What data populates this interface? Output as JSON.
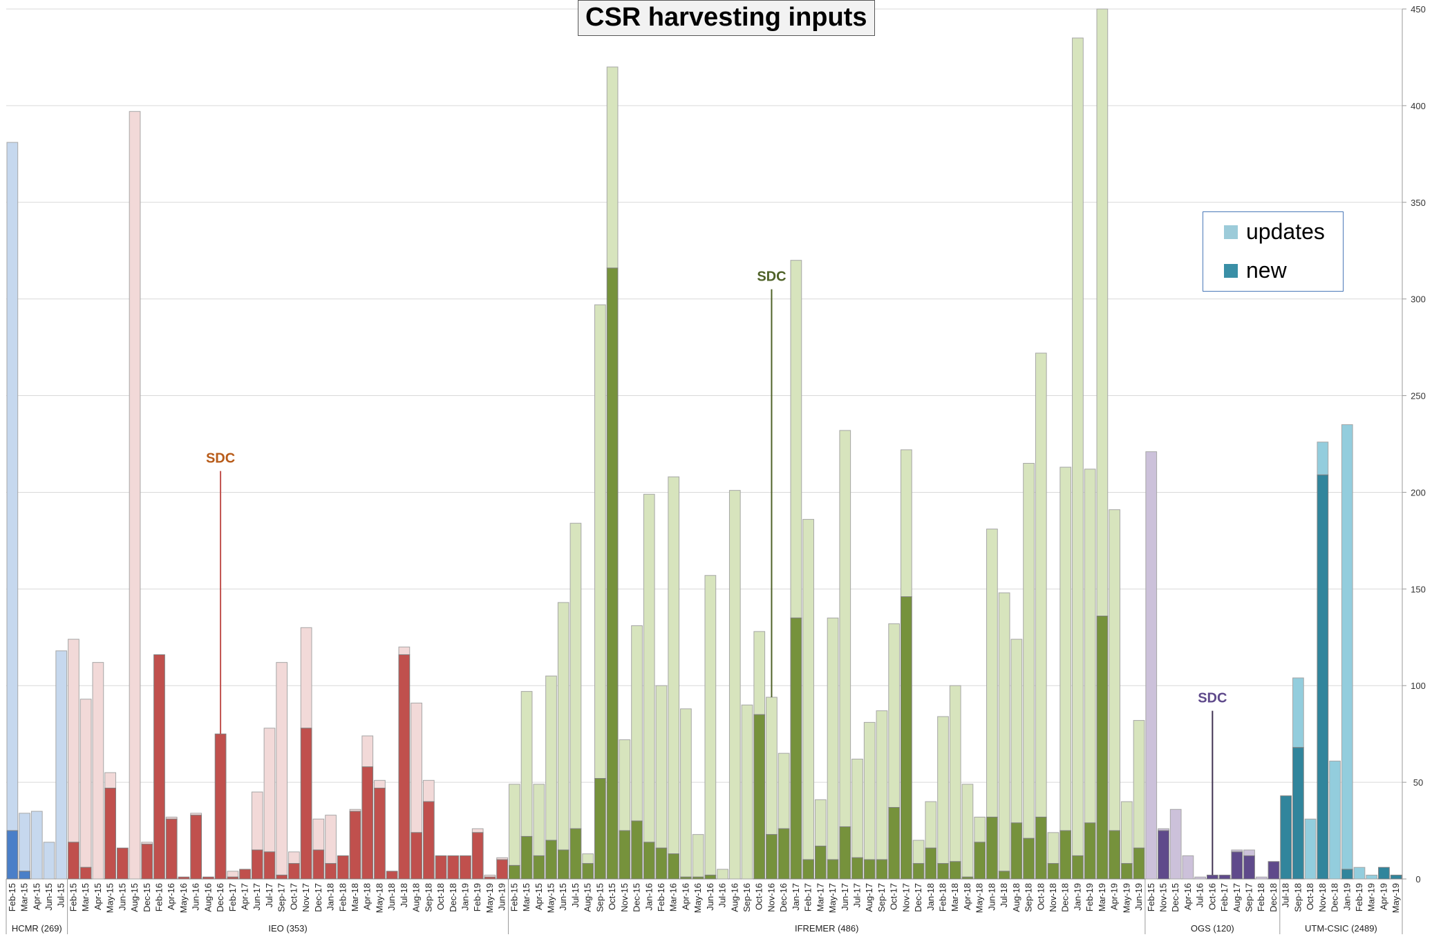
{
  "chart_data": {
    "type": "bar",
    "title": "CSR harvesting inputs",
    "ylim": [
      0,
      450
    ],
    "yticks": [
      0,
      50,
      100,
      150,
      200,
      250,
      300,
      350,
      400,
      450
    ],
    "grid": true,
    "stacked": true,
    "legend": {
      "position": "right",
      "entries": [
        "updates",
        "new"
      ]
    },
    "legend_colors": {
      "updates": "#9ccbd9",
      "new": "#3a8fa6"
    },
    "groups": [
      {
        "name": "HCMR (269)",
        "colors": {
          "new": "#4a7fc8",
          "updates": "#c6d8ee"
        },
        "categories": [
          "Feb-15",
          "Mar-15",
          "Apr-15",
          "Jun-15",
          "Jul-15"
        ],
        "new": [
          25,
          4,
          0,
          0,
          0
        ],
        "total": [
          381,
          34,
          35,
          19,
          118
        ]
      },
      {
        "name": "IEO (353)",
        "colors": {
          "new": "#c0504d",
          "updates": "#f2d9d8"
        },
        "categories": [
          "Feb-15",
          "Mar-15",
          "Apr-15",
          "May-15",
          "Jun-15",
          "Aug-15",
          "Dec-15",
          "Feb-16",
          "Apr-16",
          "May-16",
          "Jun-16",
          "Aug-16",
          "Dec-16",
          "Feb-17",
          "Apr-17",
          "Jun-17",
          "Jul-17",
          "Sep-17",
          "Oct-17",
          "Nov-17",
          "Dec-17",
          "Jan-18",
          "Feb-18",
          "Mar-18",
          "Apr-18",
          "May-18",
          "Jun-18",
          "Jul-18",
          "Aug-18",
          "Sep-18",
          "Oct-18",
          "Dec-18",
          "Jan-19",
          "Feb-19",
          "May-19",
          "Jun-19"
        ],
        "new": [
          19,
          6,
          0,
          47,
          16,
          0,
          18,
          116,
          31,
          1,
          33,
          1,
          75,
          1,
          5,
          15,
          14,
          2,
          8,
          78,
          15,
          8,
          12,
          35,
          58,
          47,
          4,
          116,
          24,
          40,
          12,
          12,
          12,
          24,
          1,
          10
        ],
        "total": [
          124,
          93,
          112,
          55,
          16,
          397,
          19,
          116,
          32,
          1,
          34,
          1,
          75,
          4,
          5,
          45,
          78,
          112,
          14,
          130,
          31,
          33,
          12,
          36,
          74,
          51,
          4,
          120,
          91,
          51,
          12,
          12,
          12,
          26,
          2,
          11
        ]
      },
      {
        "name": "IFREMER (486)",
        "colors": {
          "new": "#76923c",
          "updates": "#d7e4bd"
        },
        "categories": [
          "Feb-15",
          "Mar-15",
          "Apr-15",
          "May-15",
          "Jun-15",
          "Jul-15",
          "Aug-15",
          "Sep-15",
          "Oct-15",
          "Nov-15",
          "Dec-15",
          "Jan-16",
          "Feb-16",
          "Mar-16",
          "Apr-16",
          "May-16",
          "Jun-16",
          "Jul-16",
          "Aug-16",
          "Sep-16",
          "Oct-16",
          "Nov-16",
          "Dec-16",
          "Jan-17",
          "Feb-17",
          "Mar-17",
          "May-17",
          "Jun-17",
          "Jul-17",
          "Aug-17",
          "Sep-17",
          "Oct-17",
          "Nov-17",
          "Dec-17",
          "Jan-18",
          "Feb-18",
          "Mar-18",
          "Apr-18",
          "May-18",
          "Jun-18",
          "Jul-18",
          "Aug-18",
          "Sep-18",
          "Oct-18",
          "Nov-18",
          "Dec-18",
          "Jan-19",
          "Feb-19",
          "Mar-19",
          "Apr-19",
          "May-19",
          "Jun-19"
        ],
        "new": [
          7,
          22,
          12,
          20,
          15,
          26,
          8,
          52,
          316,
          25,
          30,
          19,
          16,
          13,
          1,
          1,
          2,
          0,
          0,
          0,
          85,
          23,
          26,
          135,
          10,
          17,
          10,
          27,
          11,
          10,
          10,
          37,
          146,
          8,
          16,
          8,
          9,
          1,
          19,
          32,
          4,
          29,
          21,
          32,
          8,
          25,
          12,
          29,
          136,
          25,
          8,
          16
        ],
        "total": [
          49,
          97,
          49,
          105,
          143,
          184,
          13,
          297,
          420,
          72,
          131,
          199,
          100,
          208,
          88,
          23,
          157,
          5,
          201,
          90,
          128,
          94,
          65,
          320,
          186,
          41,
          135,
          232,
          62,
          81,
          87,
          132,
          222,
          20,
          40,
          84,
          100,
          49,
          32,
          181,
          148,
          124,
          215,
          272,
          24,
          213,
          435,
          212,
          450,
          191,
          40,
          82
        ]
      },
      {
        "name": "OGS (120)",
        "colors": {
          "new": "#5f4a8b",
          "updates": "#ccc1da"
        },
        "categories": [
          "Feb-15",
          "Nov-15",
          "Dec-15",
          "Apr-16",
          "Jul-16",
          "Oct-16",
          "Feb-17",
          "Aug-17",
          "Sep-17",
          "Feb-18",
          "Dec-18"
        ],
        "new": [
          0,
          25,
          0,
          0,
          0,
          2,
          2,
          14,
          12,
          0,
          9
        ],
        "total": [
          221,
          26,
          36,
          12,
          1,
          2,
          2,
          15,
          15,
          1,
          9
        ]
      },
      {
        "name": "UTM-CSIC (2489)",
        "colors": {
          "new": "#31859c",
          "updates": "#93cddd"
        },
        "categories": [
          "Jul-18",
          "Sep-18",
          "Oct-18",
          "Nov-18",
          "Dec-18",
          "Jan-19",
          "Feb-19",
          "Mar-19",
          "Apr-19",
          "May-19"
        ],
        "new": [
          43,
          68,
          0,
          209,
          0,
          5,
          0,
          0,
          6,
          2
        ],
        "total": [
          43,
          104,
          31,
          226,
          61,
          235,
          6,
          2,
          6,
          2
        ]
      }
    ],
    "annotations": [
      {
        "text": "SDC",
        "group": 1,
        "index": 12,
        "y_top": 211,
        "color": "#b85c1a",
        "line_color": "#c0504d"
      },
      {
        "text": "SDC",
        "group": 2,
        "index": 21,
        "y_top": 305,
        "color": "#4f6228",
        "line_color": "#4f6228"
      },
      {
        "text": "SDC",
        "group": 3,
        "index": 5,
        "y_top": 87,
        "color": "#5f4a8b",
        "line_color": "#3f3151"
      }
    ]
  }
}
